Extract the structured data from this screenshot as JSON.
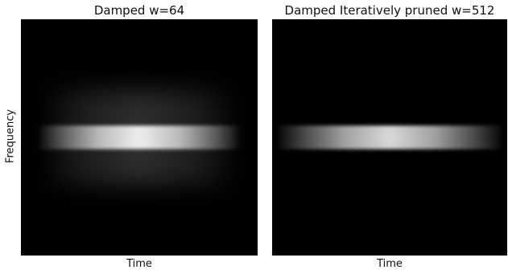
{
  "chart_data": [
    {
      "type": "heatmap",
      "title": "Damped w=64",
      "xlabel": "Time",
      "ylabel": "Frequency",
      "colormap": "grayscale",
      "background": "#000000",
      "bands": [
        {
          "freq_center": 0.5,
          "freq_halfwidth": 0.05,
          "time_start": 0.08,
          "time_end": 0.92,
          "peak_intensity": 0.92,
          "profile": "wide-centered"
        },
        {
          "freq_center": 0.5,
          "freq_halfwidth": 0.2,
          "time_start": 0.08,
          "time_end": 0.92,
          "peak_intensity": 0.18,
          "profile": "halo"
        }
      ]
    },
    {
      "type": "heatmap",
      "title": "Damped Iteratively pruned w=512",
      "xlabel": "Time",
      "ylabel": "",
      "colormap": "grayscale",
      "background": "#000000",
      "bands": [
        {
          "freq_center": 0.5,
          "freq_halfwidth": 0.05,
          "time_start": 0.03,
          "time_end": 0.97,
          "peak_intensity": 0.85,
          "profile": "wide-centered"
        }
      ]
    }
  ]
}
